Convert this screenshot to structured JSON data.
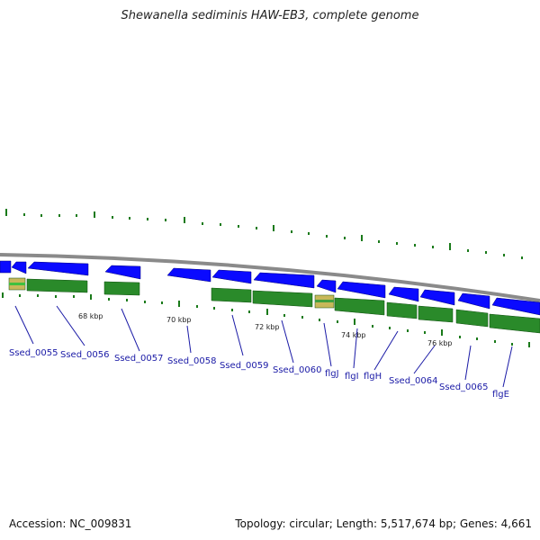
{
  "title": "Shewanella sediminis HAW-EB3, complete genome",
  "footer": {
    "accession": "Accession: NC_009831",
    "summary": "Topology: circular; Length: 5,517,674 bp; Genes: 4,661"
  },
  "colors": {
    "cds_forward": "#0a0aff",
    "gene_bar": "#2a8a2a",
    "rna_bar": "#c8b85a",
    "tick": "#1a7a1a",
    "backbone": "#888888",
    "label": "#1a1aa6"
  },
  "scale_labels": [
    "68 kbp",
    "70 kbp",
    "72 kbp",
    "74 kbp",
    "76 kbp"
  ],
  "genes": [
    "Ssed_0055",
    "Ssed_0056",
    "Ssed_0057",
    "Ssed_0058",
    "Ssed_0059",
    "Ssed_0060",
    "flgJ",
    "flgI",
    "flgH",
    "Ssed_0064",
    "Ssed_0065",
    "flgE"
  ]
}
